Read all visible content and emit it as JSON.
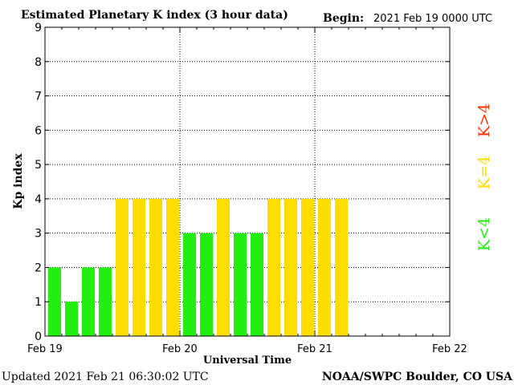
{
  "header": {
    "title": "Estimated Planetary K index (3 hour data)",
    "begin_label": "Begin:",
    "begin_value": "2021 Feb 19 0000 UTC"
  },
  "footer": {
    "updated": "Updated 2021 Feb 21 06:30:02 UTC",
    "credit": "NOAA/SWPC Boulder, CO USA"
  },
  "legend": {
    "low": "K<4",
    "mid": "K=4",
    "high": "K>4"
  },
  "colors": {
    "low": "#22ee11",
    "mid": "#ffdd00",
    "high": "#ff3300",
    "grid": "#000000"
  },
  "chart_data": {
    "type": "bar",
    "title": "Estimated Planetary K index (3 hour data)",
    "xlabel": "Universal Time",
    "ylabel": "Kp index",
    "ylim": [
      0,
      9
    ],
    "yticks": [
      "0",
      "1",
      "2",
      "3",
      "4",
      "5",
      "6",
      "7",
      "8",
      "9"
    ],
    "xticks": [
      "Feb 19",
      "Feb 20",
      "Feb 21",
      "Feb 22"
    ],
    "bar_interval_hours": 3,
    "total_slots": 24,
    "values": [
      2,
      1,
      2,
      2,
      4,
      4,
      4,
      4,
      3,
      3,
      4,
      3,
      3,
      4,
      4,
      4,
      4,
      4
    ],
    "grid": true
  }
}
